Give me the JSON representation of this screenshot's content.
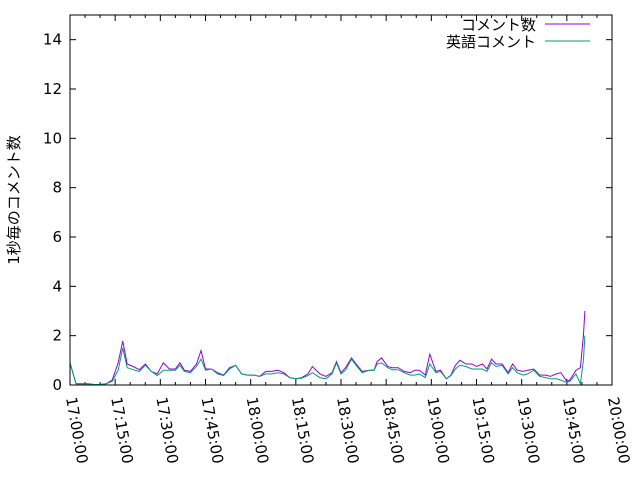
{
  "chart_data": {
    "type": "line",
    "title": "",
    "xlabel": "",
    "ylabel": "1秒毎のコメント数",
    "xlim": [
      "17:00:00",
      "20:00:00"
    ],
    "ylim": [
      0,
      15
    ],
    "grid": false,
    "legend_position": "top-right",
    "x_tick_labels": [
      "17:00:00",
      "17:15:00",
      "17:30:00",
      "17:45:00",
      "18:00:00",
      "18:15:00",
      "18:30:00",
      "18:45:00",
      "19:00:00",
      "19:15:00",
      "19:30:00",
      "19:45:00",
      "20:00:00"
    ],
    "y_tick_labels": [
      "0",
      "2",
      "4",
      "6",
      "8",
      "10",
      "12",
      "14"
    ],
    "x": [
      "17:00:00",
      "17:02:00",
      "17:04:00",
      "17:06:00",
      "17:08:00",
      "17:10:00",
      "17:12:00",
      "17:14:00",
      "17:16:00",
      "17:17:30",
      "17:19:00",
      "17:21:00",
      "17:23:00",
      "17:25:00",
      "17:27:00",
      "17:29:00",
      "17:31:00",
      "17:33:00",
      "17:35:00",
      "17:36:30",
      "17:38:00",
      "17:40:00",
      "17:42:00",
      "17:43:30",
      "17:45:00",
      "17:47:00",
      "17:49:00",
      "17:51:00",
      "17:53:00",
      "17:55:00",
      "17:57:00",
      "17:59:00",
      "18:01:00",
      "18:03:00",
      "18:05:00",
      "18:07:00",
      "18:09:00",
      "18:11:00",
      "18:13:00",
      "18:15:00",
      "18:17:00",
      "18:19:00",
      "18:20:30",
      "18:23:00",
      "18:25:00",
      "18:27:00",
      "18:28:30",
      "18:30:00",
      "18:31:30",
      "18:33:30",
      "18:35:00",
      "18:37:00",
      "18:39:30",
      "18:41:00",
      "18:42:00",
      "18:43:30",
      "18:45:30",
      "18:47:00",
      "18:49:00",
      "18:51:00",
      "18:53:00",
      "18:54:30",
      "18:56:00",
      "18:58:00",
      "18:59:30",
      "19:01:30",
      "19:03:00",
      "19:05:00",
      "19:06:30",
      "19:08:00",
      "19:09:30",
      "19:11:30",
      "19:13:30",
      "19:15:00",
      "19:17:00",
      "19:18:30",
      "19:20:00",
      "19:21:30",
      "19:23:30",
      "19:25:30",
      "19:27:00",
      "19:28:30",
      "19:30:30",
      "19:32:00",
      "19:34:00",
      "19:36:00",
      "19:38:00",
      "19:39:30",
      "19:41:30",
      "19:43:00",
      "19:45:00",
      "19:46:00",
      "19:48:00",
      "19:49:30",
      "19:50:30",
      "19:51:00"
    ],
    "series": [
      {
        "name": "コメント数",
        "color": "#9400d3",
        "values": [
          0.9,
          0.05,
          0.05,
          0.05,
          0.02,
          0.02,
          0.05,
          0.2,
          0.9,
          1.78,
          0.85,
          0.75,
          0.62,
          0.85,
          0.55,
          0.45,
          0.9,
          0.65,
          0.65,
          0.9,
          0.6,
          0.55,
          0.85,
          1.4,
          0.65,
          0.65,
          0.5,
          0.4,
          0.7,
          0.8,
          0.45,
          0.4,
          0.4,
          0.35,
          0.55,
          0.55,
          0.6,
          0.5,
          0.3,
          0.25,
          0.3,
          0.45,
          0.75,
          0.45,
          0.35,
          0.5,
          0.95,
          0.5,
          0.7,
          1.1,
          0.85,
          0.55,
          0.6,
          0.6,
          0.95,
          1.1,
          0.75,
          0.7,
          0.7,
          0.55,
          0.5,
          0.6,
          0.6,
          0.4,
          1.25,
          0.55,
          0.6,
          0.25,
          0.4,
          0.8,
          1.0,
          0.85,
          0.85,
          0.75,
          0.85,
          0.65,
          1.05,
          0.85,
          0.85,
          0.5,
          0.85,
          0.6,
          0.55,
          0.6,
          0.65,
          0.4,
          0.4,
          0.35,
          0.45,
          0.5,
          0.15,
          0.2,
          0.6,
          0.7,
          2.0,
          3.0
        ]
      },
      {
        "name": "英語コメント",
        "color": "#009e73",
        "values": [
          0.9,
          0.05,
          0.05,
          0.05,
          0.02,
          0.02,
          0.05,
          0.15,
          0.6,
          1.5,
          0.7,
          0.62,
          0.55,
          0.8,
          0.55,
          0.38,
          0.6,
          0.6,
          0.6,
          0.8,
          0.55,
          0.5,
          0.75,
          1.05,
          0.6,
          0.65,
          0.45,
          0.38,
          0.65,
          0.8,
          0.45,
          0.4,
          0.4,
          0.35,
          0.45,
          0.45,
          0.5,
          0.45,
          0.3,
          0.25,
          0.28,
          0.38,
          0.5,
          0.3,
          0.25,
          0.45,
          0.9,
          0.45,
          0.6,
          1.05,
          0.8,
          0.5,
          0.6,
          0.6,
          0.85,
          0.9,
          0.7,
          0.62,
          0.62,
          0.5,
          0.4,
          0.4,
          0.45,
          0.3,
          0.85,
          0.5,
          0.55,
          0.25,
          0.38,
          0.65,
          0.8,
          0.75,
          0.65,
          0.65,
          0.65,
          0.55,
          0.9,
          0.75,
          0.8,
          0.45,
          0.7,
          0.5,
          0.4,
          0.45,
          0.6,
          0.35,
          0.3,
          0.25,
          0.25,
          0.2,
          0.1,
          0.15,
          0.45,
          0.05,
          1.0,
          2.0
        ]
      }
    ]
  }
}
